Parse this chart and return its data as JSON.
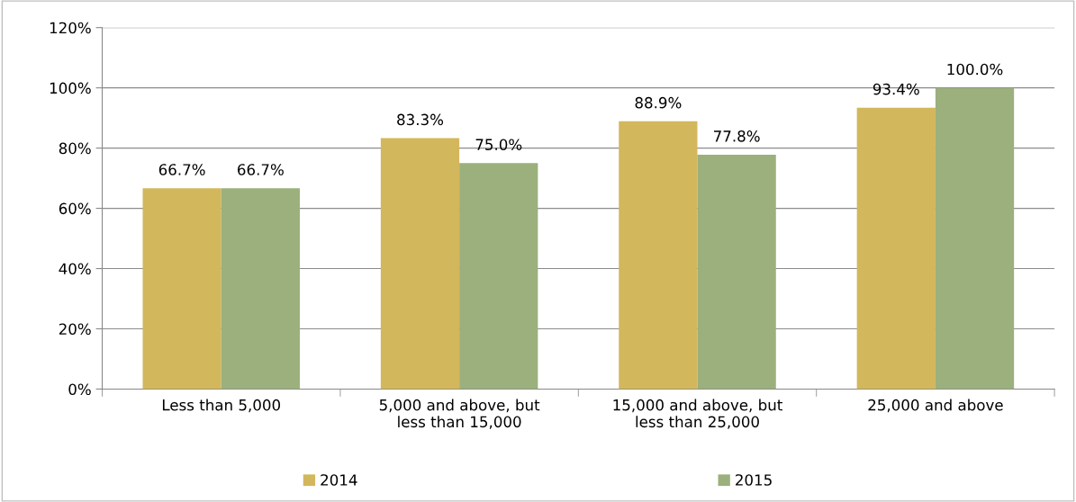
{
  "chart_data": {
    "type": "bar",
    "categories": [
      "Less than 5,000",
      "5,000 and above, but\nless than 15,000",
      "15,000 and above, but\nless than 25,000",
      "25,000 and above"
    ],
    "series": [
      {
        "name": "2014",
        "color": "#d3b75c",
        "values": [
          66.7,
          83.3,
          88.9,
          93.4
        ],
        "value_labels": [
          "66.7%",
          "83.3%",
          "88.9%",
          "93.4%"
        ]
      },
      {
        "name": "2015",
        "color": "#9bb07c",
        "values": [
          66.7,
          75.0,
          77.8,
          100.0
        ],
        "value_labels": [
          "66.7%",
          "75.0%",
          "77.8%",
          "100.0%"
        ]
      }
    ],
    "ylim": [
      0,
      120
    ],
    "yticks": [
      {
        "value": 0,
        "label": "0%"
      },
      {
        "value": 20,
        "label": "20%"
      },
      {
        "value": 40,
        "label": "40%"
      },
      {
        "value": 60,
        "label": "60%"
      },
      {
        "value": 80,
        "label": "80%"
      },
      {
        "value": 100,
        "label": "100%"
      },
      {
        "value": 120,
        "label": "120%"
      }
    ],
    "grid": "y",
    "legend": "bottom"
  }
}
